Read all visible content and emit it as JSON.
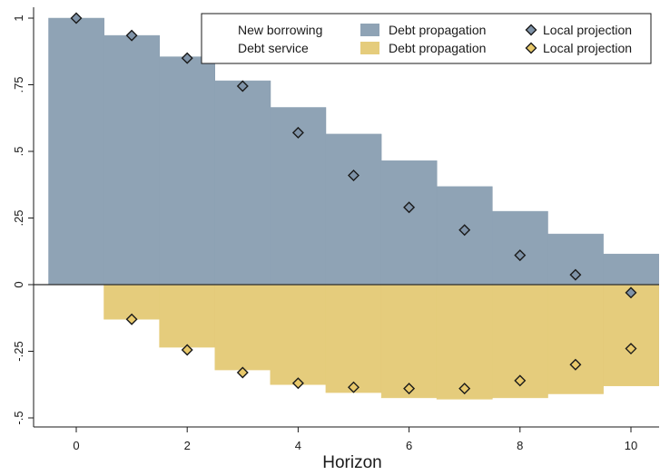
{
  "chart_data": {
    "type": "bar",
    "xlabel": "Horizon",
    "ylabel": "",
    "xlim": [
      -0.5,
      10.5
    ],
    "ylim": [
      -0.5,
      1
    ],
    "x_ticks": [
      0,
      2,
      4,
      6,
      8,
      10
    ],
    "y_ticks": [
      -0.5,
      -0.25,
      0,
      0.25,
      0.5,
      0.75,
      1
    ],
    "y_tick_labels": [
      "-.5",
      "-.25",
      "0",
      ".25",
      ".5",
      ".75",
      "1"
    ],
    "x": [
      0,
      1,
      2,
      3,
      4,
      5,
      6,
      7,
      8,
      9,
      10
    ],
    "series": [
      {
        "group": "New borrowing",
        "name": "Debt propagation",
        "kind": "bar",
        "color": "#8fa3b5",
        "values": [
          1.0,
          0.935,
          0.855,
          0.765,
          0.665,
          0.565,
          0.465,
          0.368,
          0.275,
          0.19,
          0.115
        ]
      },
      {
        "group": "Debt service",
        "name": "Debt propagation",
        "kind": "bar",
        "color": "#e5cc7c",
        "values": [
          0,
          -0.13,
          -0.235,
          -0.32,
          -0.375,
          -0.405,
          -0.425,
          -0.43,
          -0.425,
          -0.41,
          -0.38
        ]
      },
      {
        "group": "New borrowing",
        "name": "Local projection",
        "kind": "marker",
        "color": "#7f93a8",
        "values": [
          1.0,
          0.935,
          0.85,
          0.745,
          0.57,
          0.41,
          0.29,
          0.205,
          0.11,
          0.037,
          -0.03
        ]
      },
      {
        "group": "Debt service",
        "name": "Local projection",
        "kind": "marker",
        "color": "#e8c86a",
        "values": [
          null,
          -0.13,
          -0.245,
          -0.33,
          -0.37,
          -0.385,
          -0.39,
          -0.39,
          -0.36,
          -0.3,
          -0.24
        ]
      }
    ],
    "legend": {
      "placement": "top-right",
      "rows": [
        {
          "label": "New borrowing",
          "bar_label": "Debt propagation",
          "marker_label": "Local projection"
        },
        {
          "label": "Debt service",
          "bar_label": "Debt propagation",
          "marker_label": "Local projection"
        }
      ]
    },
    "grid": false
  }
}
